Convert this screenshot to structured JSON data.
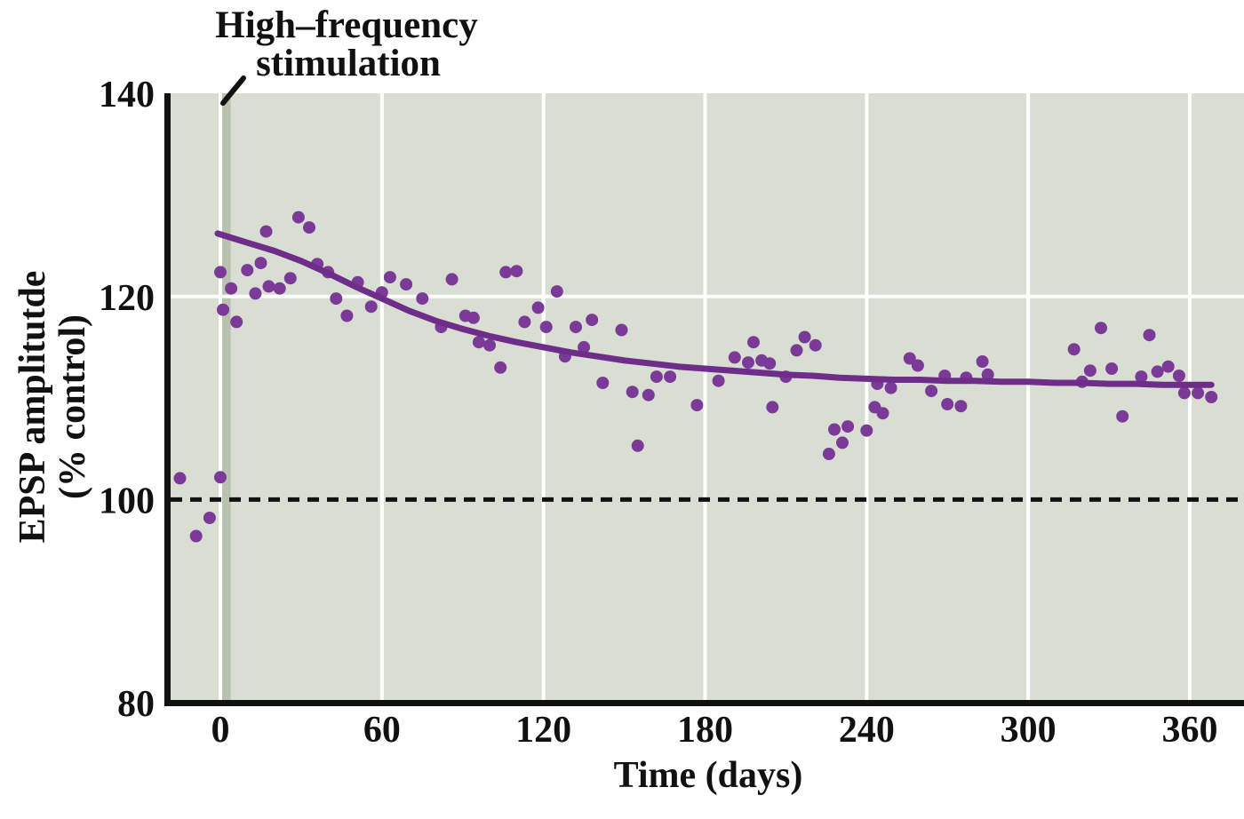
{
  "figure": {
    "annotation": {
      "line1": "High–frequency",
      "line2": "stimulation"
    },
    "x_axis": {
      "label": "Time (days)",
      "ticks": [
        0,
        60,
        120,
        180,
        240,
        300,
        360
      ]
    },
    "y_axis": {
      "label_line1": "EPSP amplitutde",
      "label_line2": "(% control)",
      "ticks": [
        140,
        120,
        100,
        80
      ]
    }
  },
  "chart_data": {
    "type": "scatter",
    "title": "High–frequency stimulation",
    "xlabel": "Time (days)",
    "ylabel": "EPSP amplitutde (% control)",
    "x_ticks": [
      0,
      60,
      120,
      180,
      240,
      300,
      360
    ],
    "y_ticks": [
      140,
      120,
      100,
      80
    ],
    "h_gridlines": [
      120
    ],
    "xlim": [
      -18.5,
      380
    ],
    "ylim": [
      80,
      140
    ],
    "grid": true,
    "legend": "none",
    "baseline_value": 100,
    "stimulation_day": 2,
    "colors": {
      "plot_bg": "#d9ded3",
      "grid": "#ffffff",
      "stim_bar": "#b9c1b0",
      "points": "#7b3a97",
      "trend": "#6f2d8a",
      "axis": "#111111"
    },
    "points": [
      [
        -15,
        102.1
      ],
      [
        -9,
        96.4
      ],
      [
        -4,
        98.2
      ],
      [
        0,
        102.2
      ],
      [
        0,
        122.4
      ],
      [
        1,
        118.7
      ],
      [
        4,
        120.8
      ],
      [
        6,
        117.5
      ],
      [
        10,
        122.6
      ],
      [
        13,
        120.3
      ],
      [
        15,
        123.3
      ],
      [
        17,
        126.4
      ],
      [
        18,
        121.0
      ],
      [
        22,
        120.8
      ],
      [
        26,
        121.8
      ],
      [
        29,
        127.8
      ],
      [
        33,
        126.8
      ],
      [
        36,
        123.2
      ],
      [
        40,
        122.4
      ],
      [
        43,
        119.8
      ],
      [
        47,
        118.1
      ],
      [
        51,
        121.4
      ],
      [
        56,
        119.0
      ],
      [
        60,
        120.4
      ],
      [
        63,
        121.9
      ],
      [
        69,
        121.2
      ],
      [
        75,
        119.8
      ],
      [
        82,
        117.0
      ],
      [
        86,
        121.7
      ],
      [
        91,
        118.1
      ],
      [
        94,
        117.9
      ],
      [
        96,
        115.5
      ],
      [
        100,
        115.2
      ],
      [
        104,
        113.0
      ],
      [
        106,
        122.4
      ],
      [
        110,
        122.5
      ],
      [
        113,
        117.5
      ],
      [
        118,
        118.9
      ],
      [
        121,
        117.0
      ],
      [
        125,
        120.5
      ],
      [
        128,
        114.1
      ],
      [
        132,
        117.0
      ],
      [
        135,
        115.0
      ],
      [
        138,
        117.7
      ],
      [
        142,
        111.5
      ],
      [
        149,
        116.7
      ],
      [
        153,
        110.6
      ],
      [
        155,
        105.3
      ],
      [
        159,
        110.3
      ],
      [
        162,
        112.1
      ],
      [
        167,
        112.1
      ],
      [
        177,
        109.3
      ],
      [
        185,
        111.7
      ],
      [
        191,
        114.0
      ],
      [
        196,
        113.5
      ],
      [
        198,
        115.5
      ],
      [
        201,
        113.7
      ],
      [
        204,
        113.4
      ],
      [
        205,
        109.1
      ],
      [
        210,
        112.1
      ],
      [
        214,
        114.7
      ],
      [
        217,
        116.0
      ],
      [
        221,
        115.2
      ],
      [
        226,
        104.5
      ],
      [
        228,
        106.9
      ],
      [
        231,
        105.6
      ],
      [
        233,
        107.2
      ],
      [
        240,
        106.8
      ],
      [
        243,
        109.1
      ],
      [
        244,
        111.4
      ],
      [
        246,
        108.5
      ],
      [
        249,
        111.0
      ],
      [
        256,
        113.9
      ],
      [
        259,
        113.2
      ],
      [
        264,
        110.7
      ],
      [
        269,
        112.2
      ],
      [
        270,
        109.4
      ],
      [
        275,
        109.2
      ],
      [
        277,
        112.0
      ],
      [
        283,
        113.6
      ],
      [
        285,
        112.3
      ],
      [
        317,
        114.8
      ],
      [
        320,
        111.6
      ],
      [
        323,
        112.7
      ],
      [
        327,
        116.9
      ],
      [
        331,
        112.9
      ],
      [
        335,
        108.2
      ],
      [
        342,
        112.1
      ],
      [
        345,
        116.2
      ],
      [
        348,
        112.6
      ],
      [
        352,
        113.1
      ],
      [
        356,
        112.2
      ],
      [
        358,
        110.5
      ],
      [
        363,
        110.5
      ],
      [
        368,
        110.1
      ]
    ],
    "trend": [
      [
        -1,
        126.2
      ],
      [
        10,
        125.3
      ],
      [
        20,
        124.5
      ],
      [
        30,
        123.5
      ],
      [
        40,
        122.3
      ],
      [
        50,
        121.0
      ],
      [
        60,
        119.8
      ],
      [
        70,
        118.6
      ],
      [
        80,
        117.6
      ],
      [
        90,
        116.8
      ],
      [
        100,
        116.1
      ],
      [
        110,
        115.5
      ],
      [
        120,
        115.0
      ],
      [
        130,
        114.5
      ],
      [
        140,
        114.1
      ],
      [
        150,
        113.7
      ],
      [
        160,
        113.4
      ],
      [
        170,
        113.1
      ],
      [
        180,
        112.9
      ],
      [
        190,
        112.7
      ],
      [
        200,
        112.5
      ],
      [
        210,
        112.3
      ],
      [
        220,
        112.2
      ],
      [
        230,
        112.0
      ],
      [
        240,
        111.9
      ],
      [
        250,
        111.8
      ],
      [
        260,
        111.8
      ],
      [
        270,
        111.7
      ],
      [
        280,
        111.7
      ],
      [
        290,
        111.6
      ],
      [
        300,
        111.6
      ],
      [
        310,
        111.5
      ],
      [
        320,
        111.5
      ],
      [
        330,
        111.4
      ],
      [
        340,
        111.4
      ],
      [
        350,
        111.3
      ],
      [
        360,
        111.3
      ],
      [
        368,
        111.3
      ]
    ]
  }
}
